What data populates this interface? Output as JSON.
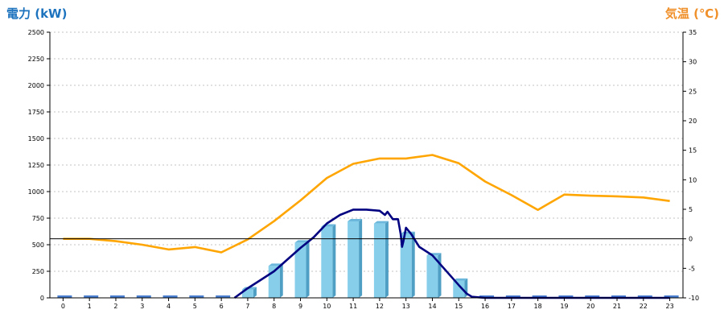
{
  "colors": {
    "power_axis_title": "#1e73be",
    "temp_axis_title": "#f0902a",
    "bar": "#87ceeb",
    "bar_side": "#4f9ec4",
    "bar_top": "#6bb8dc",
    "stub": "#4a7fd0",
    "power_line": "#000080",
    "temp_line": "#ffa500",
    "grid": "#b0b0b0"
  },
  "chart_data": {
    "type": "bar",
    "left_axis": {
      "label": "電力 (kW)",
      "ylim": [
        0,
        2500
      ],
      "ticks": [
        "0",
        "250",
        "500",
        "750",
        "1000",
        "1250",
        "1500",
        "1750",
        "2000",
        "2250",
        "2500"
      ]
    },
    "right_axis": {
      "label": "気温 (℃)",
      "ylim": [
        -10,
        35
      ],
      "ticks": [
        "-10",
        "-5",
        "0",
        "5",
        "10",
        "15",
        "20",
        "25",
        "30",
        "35"
      ]
    },
    "categories": [
      "0",
      "1",
      "2",
      "3",
      "4",
      "5",
      "6",
      "7",
      "8",
      "9",
      "10",
      "11",
      "12",
      "13",
      "14",
      "15",
      "16",
      "17",
      "18",
      "19",
      "20",
      "21",
      "22",
      "23"
    ],
    "grid": true,
    "series": [
      {
        "kind": "bar",
        "axis": "left",
        "values": [
          0,
          0,
          0,
          0,
          0,
          0,
          0,
          80,
          300,
          520,
          670,
          720,
          700,
          600,
          400,
          160,
          0,
          0,
          0,
          0,
          0,
          0,
          0,
          0
        ]
      },
      {
        "kind": "line",
        "axis": "left",
        "x": [
          6.5,
          7,
          7.5,
          8,
          8.5,
          9,
          9.5,
          10,
          10.5,
          11,
          11.5,
          12,
          12.2,
          12.3,
          12.5,
          12.7,
          12.8,
          12.85,
          12.9,
          13,
          13.2,
          13.5,
          14,
          14.5,
          15,
          15.3,
          15.5,
          16,
          16.5,
          17,
          18,
          19,
          20,
          21,
          22,
          23
        ],
        "values": [
          0,
          90,
          170,
          250,
          360,
          470,
          570,
          700,
          780,
          830,
          830,
          820,
          780,
          810,
          740,
          740,
          600,
          480,
          530,
          660,
          600,
          480,
          400,
          260,
          120,
          40,
          10,
          0,
          0,
          0,
          0,
          0,
          0,
          0,
          0,
          0
        ]
      },
      {
        "kind": "line",
        "axis": "right",
        "values": [
          0,
          0,
          -0.4,
          -1,
          -1.8,
          -1.4,
          -2.3,
          -0.1,
          3,
          6.5,
          10.3,
          12.7,
          13.6,
          13.6,
          14.2,
          12.8,
          9.7,
          7.4,
          4.9,
          7.5,
          7.3,
          7.2,
          7,
          6.4
        ]
      }
    ]
  }
}
